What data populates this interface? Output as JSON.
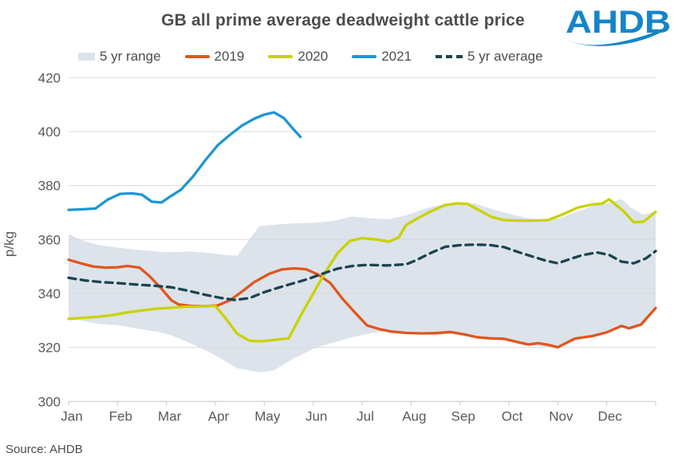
{
  "page": {
    "logo_text": "AHDB",
    "logo_color": "#1585c8"
  },
  "legend": [
    {
      "label": "5 yr range",
      "type": "band",
      "color": "#dce3ea"
    },
    {
      "label": "2019",
      "type": "line",
      "color": "#e0561e"
    },
    {
      "label": "2020",
      "type": "line",
      "color": "#c9d200"
    },
    {
      "label": "2021",
      "type": "line",
      "color": "#1e96d2"
    },
    {
      "label": "5 yr average",
      "type": "dashed",
      "color": "#1c4350"
    }
  ],
  "chart_data": {
    "type": "line",
    "title": "GB all prime average deadweight cattle price",
    "source": "Source: AHDB",
    "xlabel": "",
    "ylabel": "p/kg",
    "ylim": [
      300,
      420
    ],
    "yticks": [
      300,
      320,
      340,
      360,
      380,
      400,
      420
    ],
    "x_range": [
      0,
      12
    ],
    "x_categories": [
      "Jan",
      "Feb",
      "Mar",
      "Apr",
      "May",
      "Jun",
      "Jul",
      "Aug",
      "Sep",
      "Oct",
      "Nov",
      "Dec"
    ],
    "grid": "horizontal",
    "legend_position": "top",
    "band": {
      "name": "5 yr range",
      "color": "#dce3ea",
      "x": [
        0,
        0.3,
        0.6,
        1.0,
        1.4,
        1.8,
        2.1,
        2.5,
        2.9,
        3.2,
        3.45,
        3.9,
        4.2,
        4.6,
        5.0,
        5.4,
        5.8,
        6.2,
        6.55,
        6.9,
        7.3,
        7.7,
        7.95,
        8.3,
        8.7,
        9.05,
        9.4,
        9.7,
        10.0,
        10.35,
        10.7,
        11.0,
        11.3,
        11.5,
        11.75,
        12.0
      ],
      "top": [
        362.0,
        359.5,
        358.0,
        357.0,
        356.2,
        355.6,
        355.3,
        355.6,
        355.0,
        354.3,
        354.0,
        365.0,
        365.5,
        366.0,
        366.2,
        366.8,
        368.5,
        367.8,
        367.5,
        369.0,
        371.5,
        373.3,
        373.8,
        373.4,
        371.0,
        369.3,
        367.8,
        367.4,
        367.7,
        370.0,
        372.4,
        373.4,
        375.0,
        371.8,
        369.2,
        370.5
      ],
      "bottom": [
        331.3,
        329.8,
        328.8,
        328.3,
        327.0,
        325.9,
        324.5,
        321.5,
        318.0,
        315.0,
        312.3,
        310.8,
        311.5,
        316.0,
        319.5,
        321.8,
        323.8,
        325.4,
        326.0,
        325.2,
        325.0,
        325.1,
        325.3,
        324.0,
        322.9,
        322.7,
        320.9,
        320.3,
        319.6,
        322.9,
        323.8,
        325.1,
        327.4,
        326.6,
        328.2,
        334.2
      ]
    },
    "series": [
      {
        "name": "2019",
        "color": "#e0561e",
        "style": "solid",
        "x": [
          0,
          0.25,
          0.5,
          0.75,
          1.0,
          1.2,
          1.45,
          1.65,
          1.9,
          2.1,
          2.25,
          2.5,
          2.8,
          3.05,
          3.3,
          3.55,
          3.8,
          4.1,
          4.35,
          4.6,
          4.85,
          5.1,
          5.35,
          5.6,
          5.85,
          6.1,
          6.35,
          6.6,
          6.9,
          7.2,
          7.5,
          7.8,
          8.1,
          8.35,
          8.6,
          8.9,
          9.15,
          9.4,
          9.6,
          9.8,
          10.0,
          10.35,
          10.7,
          11.0,
          11.3,
          11.45,
          11.7,
          12.0
        ],
        "values": [
          352.5,
          351.2,
          350.0,
          349.6,
          349.7,
          350.2,
          349.6,
          346.5,
          341.8,
          337.5,
          335.9,
          335.4,
          335.3,
          335.6,
          337.5,
          340.8,
          344.3,
          347.3,
          348.9,
          349.3,
          349.0,
          347.0,
          343.9,
          338.0,
          333.0,
          328.2,
          326.8,
          325.9,
          325.4,
          325.2,
          325.3,
          325.7,
          324.8,
          323.8,
          323.4,
          323.2,
          322.1,
          321.1,
          321.6,
          321.0,
          320.1,
          323.3,
          324.2,
          325.6,
          328.0,
          327.1,
          328.5,
          334.6
        ]
      },
      {
        "name": "2020",
        "color": "#c9d200",
        "style": "solid",
        "x": [
          0,
          0.3,
          0.6,
          0.9,
          1.2,
          1.5,
          1.8,
          2.1,
          2.4,
          2.7,
          3.0,
          3.2,
          3.45,
          3.7,
          3.95,
          4.2,
          4.5,
          4.75,
          5.0,
          5.25,
          5.5,
          5.75,
          6.0,
          6.3,
          6.55,
          6.75,
          6.9,
          7.15,
          7.4,
          7.7,
          7.95,
          8.15,
          8.4,
          8.65,
          8.9,
          9.2,
          9.5,
          9.8,
          10.1,
          10.4,
          10.7,
          10.9,
          11.05,
          11.35,
          11.55,
          11.75,
          12.0
        ],
        "values": [
          330.6,
          331.0,
          331.4,
          332.0,
          333.0,
          333.7,
          334.4,
          334.7,
          335.1,
          335.2,
          335.4,
          331.0,
          325.0,
          322.5,
          322.3,
          322.8,
          323.4,
          332.0,
          340.0,
          348.0,
          355.0,
          359.5,
          360.5,
          360.0,
          359.2,
          360.8,
          365.4,
          368.0,
          370.4,
          372.8,
          373.4,
          373.2,
          370.8,
          368.3,
          367.2,
          367.0,
          367.0,
          367.2,
          369.3,
          371.8,
          373.0,
          373.3,
          374.9,
          370.4,
          366.4,
          366.6,
          370.3
        ]
      },
      {
        "name": "2021",
        "color": "#1e96d2",
        "style": "solid",
        "x": [
          0,
          0.3,
          0.55,
          0.8,
          1.05,
          1.3,
          1.5,
          1.7,
          1.9,
          2.05,
          2.3,
          2.55,
          2.8,
          3.05,
          3.3,
          3.55,
          3.8,
          4.0,
          4.2,
          4.4,
          4.6,
          4.74
        ],
        "values": [
          371.0,
          371.2,
          371.5,
          374.8,
          376.9,
          377.1,
          376.6,
          374.0,
          373.7,
          375.6,
          378.5,
          383.5,
          389.5,
          395.0,
          398.8,
          402.3,
          404.8,
          406.3,
          407.1,
          405.0,
          400.8,
          398.0
        ]
      },
      {
        "name": "5 yr average",
        "color": "#1c4350",
        "style": "dashed",
        "x": [
          0,
          0.35,
          0.7,
          1.05,
          1.4,
          1.75,
          2.1,
          2.45,
          2.8,
          3.1,
          3.4,
          3.7,
          4.0,
          4.3,
          4.6,
          4.9,
          5.2,
          5.5,
          5.8,
          6.1,
          6.5,
          6.9,
          7.1,
          7.4,
          7.7,
          8.0,
          8.3,
          8.6,
          8.9,
          9.2,
          9.5,
          9.75,
          10.0,
          10.25,
          10.5,
          10.8,
          11.05,
          11.3,
          11.55,
          11.8,
          12.0
        ],
        "values": [
          345.8,
          344.8,
          344.2,
          343.8,
          343.3,
          342.9,
          342.3,
          341.0,
          339.5,
          338.4,
          337.6,
          338.3,
          340.5,
          342.2,
          343.8,
          345.4,
          347.4,
          349.2,
          350.2,
          350.6,
          350.4,
          350.8,
          352.3,
          355.0,
          357.3,
          357.9,
          358.1,
          358.0,
          357.2,
          355.3,
          353.6,
          352.2,
          351.2,
          352.8,
          354.2,
          355.2,
          354.3,
          351.8,
          351.2,
          353.0,
          355.7
        ]
      }
    ],
    "colors": {
      "gridline": "#dadada",
      "axis": "#c6c6c6",
      "title_text": "#4d4d4d",
      "axis_text": "#595959"
    }
  }
}
